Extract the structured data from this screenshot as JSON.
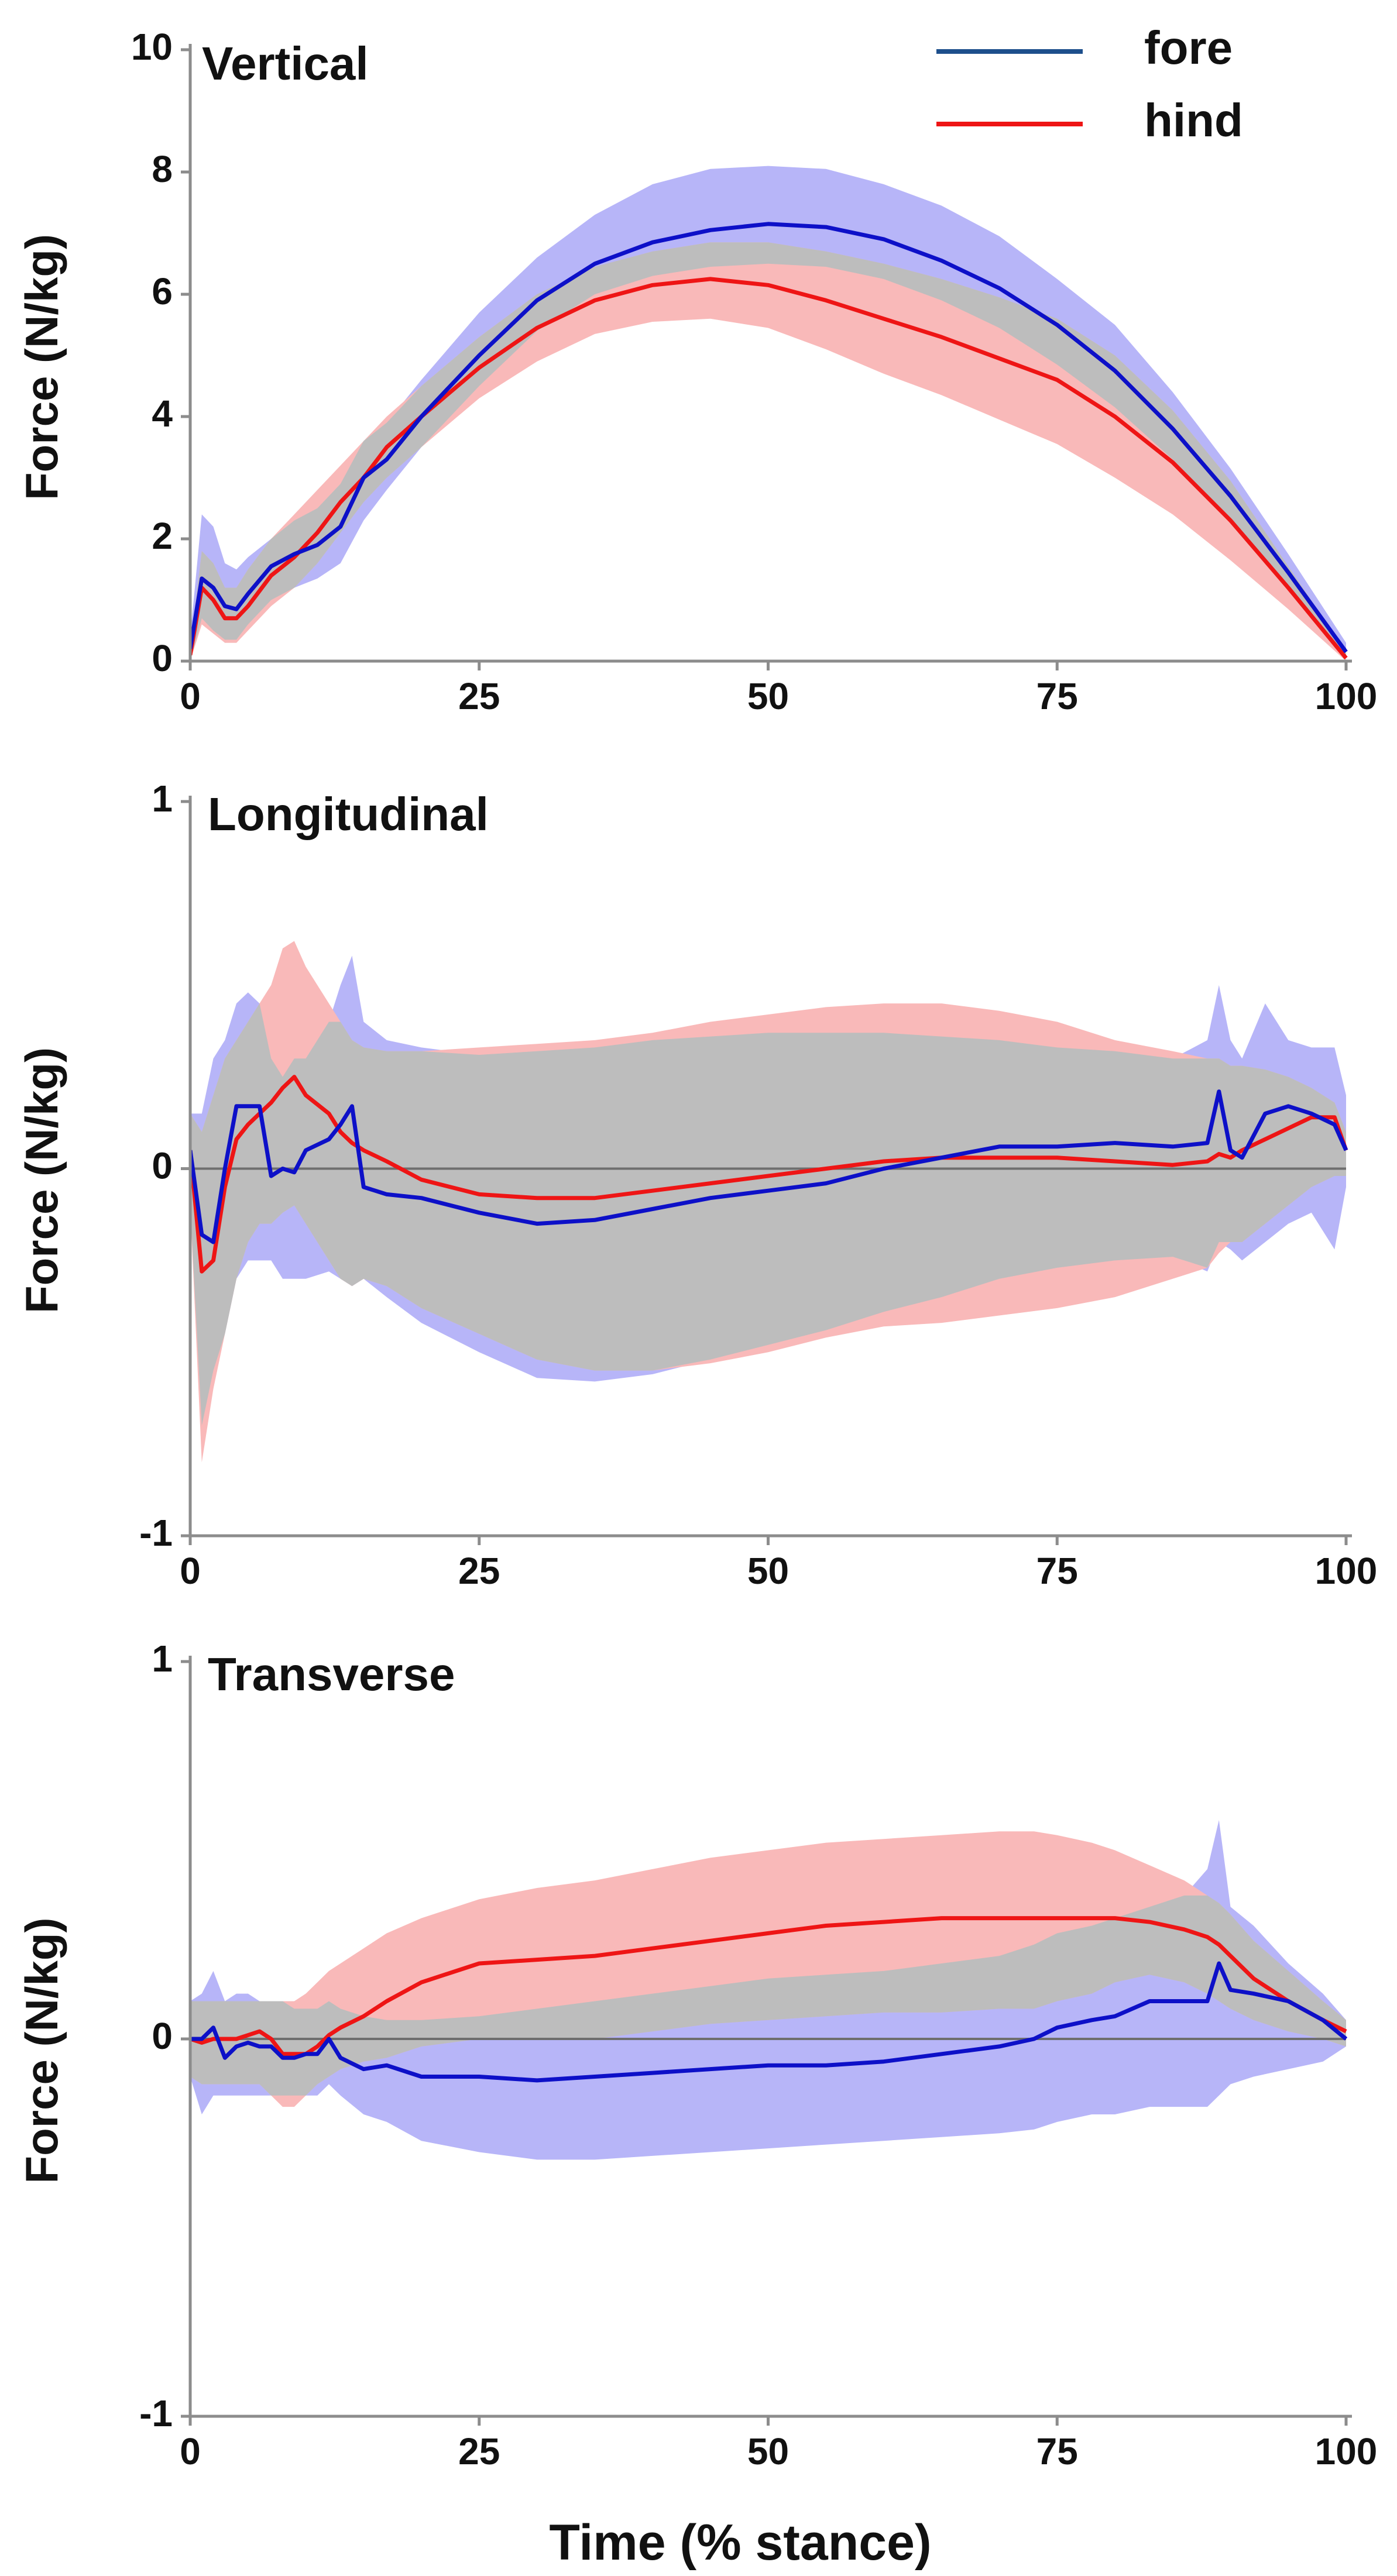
{
  "colors": {
    "fore_line": "#0d10c8",
    "fore_band": "#b7b5f8",
    "hind_line": "#ee1515",
    "hind_band": "#f9b9b9",
    "overlap_band": "#bdbdbd",
    "legend_fore_line": "#1d4f8c",
    "axis": "#8c8c8c",
    "zero_line": "#6e6e6e"
  },
  "legend": {
    "fore": "fore",
    "hind": "hind"
  },
  "xlabel": "Time (% stance)",
  "chart_data": [
    {
      "type": "line",
      "title": "Vertical",
      "ylabel": "Force (N/kg)",
      "xlim": [
        0,
        100
      ],
      "ylim": [
        0,
        10
      ],
      "yticks": [
        "0",
        "2",
        "4",
        "6",
        "8",
        "10"
      ],
      "xticks": [
        "0",
        "25",
        "50",
        "75",
        "100"
      ],
      "x": [
        0,
        1,
        2,
        3,
        4,
        5,
        7,
        9,
        11,
        13,
        15,
        17,
        20,
        25,
        30,
        35,
        40,
        45,
        50,
        55,
        60,
        65,
        70,
        75,
        80,
        85,
        90,
        95,
        100
      ],
      "series": [
        {
          "name": "fore",
          "values": [
            0.2,
            1.35,
            1.2,
            0.9,
            0.85,
            1.1,
            1.55,
            1.75,
            1.9,
            2.2,
            3.0,
            3.3,
            4.0,
            5.0,
            5.9,
            6.5,
            6.85,
            7.05,
            7.15,
            7.1,
            6.9,
            6.55,
            6.1,
            5.5,
            4.75,
            3.8,
            2.7,
            1.45,
            0.15
          ],
          "lower": [
            0.0,
            0.7,
            0.5,
            0.35,
            0.35,
            0.6,
            1.0,
            1.2,
            1.35,
            1.6,
            2.3,
            2.8,
            3.5,
            4.5,
            5.4,
            6.0,
            6.3,
            6.45,
            6.5,
            6.45,
            6.25,
            5.9,
            5.45,
            4.85,
            4.15,
            3.3,
            2.3,
            1.15,
            0.05
          ],
          "upper": [
            0.4,
            2.4,
            2.2,
            1.6,
            1.5,
            1.7,
            2.0,
            2.3,
            2.5,
            2.9,
            3.6,
            3.9,
            4.6,
            5.7,
            6.6,
            7.3,
            7.8,
            8.05,
            8.1,
            8.05,
            7.8,
            7.45,
            6.95,
            6.25,
            5.5,
            4.4,
            3.15,
            1.75,
            0.3
          ]
        },
        {
          "name": "hind",
          "values": [
            0.1,
            1.2,
            1.0,
            0.7,
            0.7,
            0.9,
            1.4,
            1.7,
            2.1,
            2.6,
            3.0,
            3.5,
            4.0,
            4.8,
            5.45,
            5.9,
            6.15,
            6.25,
            6.15,
            5.9,
            5.6,
            5.3,
            4.95,
            4.6,
            4.0,
            3.25,
            2.3,
            1.2,
            0.05
          ],
          "lower": [
            0.0,
            0.6,
            0.45,
            0.3,
            0.3,
            0.5,
            0.9,
            1.2,
            1.6,
            2.1,
            2.6,
            3.0,
            3.5,
            4.3,
            4.9,
            5.35,
            5.55,
            5.6,
            5.45,
            5.1,
            4.7,
            4.35,
            3.95,
            3.55,
            3.0,
            2.4,
            1.65,
            0.85,
            0.0
          ],
          "upper": [
            0.2,
            1.8,
            1.6,
            1.2,
            1.2,
            1.5,
            2.0,
            2.4,
            2.8,
            3.2,
            3.6,
            4.0,
            4.5,
            5.3,
            6.0,
            6.45,
            6.7,
            6.85,
            6.85,
            6.7,
            6.5,
            6.25,
            5.95,
            5.6,
            5.0,
            4.1,
            2.95,
            1.55,
            0.15
          ]
        }
      ]
    },
    {
      "type": "line",
      "title": "Longitudinal",
      "ylabel": "Force (N/kg)",
      "xlim": [
        0,
        100
      ],
      "ylim": [
        -1,
        1
      ],
      "yticks": [
        "-1",
        "0",
        "1"
      ],
      "xticks": [
        "0",
        "25",
        "50",
        "75",
        "100"
      ],
      "x": [
        0,
        1,
        2,
        3,
        4,
        5,
        6,
        7,
        8,
        9,
        10,
        12,
        13,
        14,
        15,
        17,
        20,
        25,
        30,
        35,
        40,
        45,
        50,
        55,
        60,
        65,
        70,
        75,
        80,
        85,
        88,
        89,
        90,
        91,
        93,
        95,
        97,
        99,
        100
      ],
      "series": [
        {
          "name": "fore",
          "values": [
            0.05,
            -0.18,
            -0.2,
            0.0,
            0.17,
            0.17,
            0.17,
            -0.02,
            0.0,
            -0.01,
            0.05,
            0.08,
            0.12,
            0.17,
            -0.05,
            -0.07,
            -0.08,
            -0.12,
            -0.15,
            -0.14,
            -0.11,
            -0.08,
            -0.06,
            -0.04,
            0.0,
            0.03,
            0.06,
            0.06,
            0.07,
            0.06,
            0.07,
            0.21,
            0.05,
            0.03,
            0.15,
            0.17,
            0.15,
            0.12,
            0.05
          ],
          "lower": [
            -0.1,
            -0.7,
            -0.55,
            -0.45,
            -0.3,
            -0.25,
            -0.25,
            -0.25,
            -0.3,
            -0.3,
            -0.3,
            -0.28,
            -0.3,
            -0.32,
            -0.3,
            -0.35,
            -0.42,
            -0.5,
            -0.57,
            -0.58,
            -0.56,
            -0.52,
            -0.48,
            -0.44,
            -0.39,
            -0.35,
            -0.3,
            -0.27,
            -0.25,
            -0.24,
            -0.28,
            -0.2,
            -0.22,
            -0.25,
            -0.2,
            -0.15,
            -0.12,
            -0.22,
            -0.05
          ],
          "upper": [
            0.15,
            0.15,
            0.3,
            0.35,
            0.45,
            0.48,
            0.45,
            0.3,
            0.25,
            0.3,
            0.3,
            0.4,
            0.5,
            0.58,
            0.4,
            0.35,
            0.33,
            0.31,
            0.32,
            0.33,
            0.35,
            0.36,
            0.37,
            0.37,
            0.37,
            0.36,
            0.35,
            0.33,
            0.32,
            0.3,
            0.35,
            0.5,
            0.35,
            0.3,
            0.45,
            0.35,
            0.33,
            0.33,
            0.2
          ]
        },
        {
          "name": "hind",
          "values": [
            0.05,
            -0.28,
            -0.25,
            -0.05,
            0.08,
            0.12,
            0.15,
            0.18,
            0.22,
            0.25,
            0.2,
            0.15,
            0.1,
            0.07,
            0.05,
            0.02,
            -0.03,
            -0.07,
            -0.08,
            -0.08,
            -0.06,
            -0.04,
            -0.02,
            0.0,
            0.02,
            0.03,
            0.03,
            0.03,
            0.02,
            0.01,
            0.02,
            0.04,
            0.03,
            0.05,
            0.08,
            0.11,
            0.14,
            0.14,
            0.05
          ],
          "lower": [
            -0.1,
            -0.8,
            -0.6,
            -0.45,
            -0.3,
            -0.2,
            -0.15,
            -0.15,
            -0.12,
            -0.1,
            -0.15,
            -0.25,
            -0.3,
            -0.32,
            -0.3,
            -0.32,
            -0.38,
            -0.45,
            -0.52,
            -0.55,
            -0.55,
            -0.53,
            -0.5,
            -0.46,
            -0.43,
            -0.42,
            -0.4,
            -0.38,
            -0.35,
            -0.3,
            -0.27,
            -0.23,
            -0.2,
            -0.2,
            -0.15,
            -0.1,
            -0.05,
            -0.02,
            -0.02
          ],
          "upper": [
            0.15,
            0.1,
            0.2,
            0.3,
            0.35,
            0.4,
            0.45,
            0.5,
            0.6,
            0.62,
            0.55,
            0.45,
            0.4,
            0.35,
            0.33,
            0.32,
            0.32,
            0.33,
            0.34,
            0.35,
            0.37,
            0.4,
            0.42,
            0.44,
            0.45,
            0.45,
            0.43,
            0.4,
            0.35,
            0.32,
            0.3,
            0.3,
            0.28,
            0.28,
            0.27,
            0.25,
            0.22,
            0.18,
            0.1
          ]
        }
      ]
    },
    {
      "type": "line",
      "title": "Transverse",
      "ylabel": "Force (N/kg)",
      "xlim": [
        0,
        100
      ],
      "ylim": [
        -1,
        1
      ],
      "yticks": [
        "-1",
        "0",
        "1"
      ],
      "xticks": [
        "0",
        "25",
        "50",
        "75",
        "100"
      ],
      "x": [
        0,
        1,
        2,
        3,
        4,
        5,
        6,
        7,
        8,
        9,
        10,
        11,
        12,
        13,
        15,
        17,
        20,
        25,
        30,
        35,
        40,
        45,
        50,
        55,
        60,
        65,
        70,
        73,
        75,
        78,
        80,
        83,
        86,
        88,
        89,
        90,
        92,
        95,
        98,
        100
      ],
      "series": [
        {
          "name": "fore",
          "values": [
            0.0,
            0.0,
            0.03,
            -0.05,
            -0.02,
            -0.01,
            -0.02,
            -0.02,
            -0.05,
            -0.05,
            -0.04,
            -0.04,
            0.0,
            -0.05,
            -0.08,
            -0.07,
            -0.1,
            -0.1,
            -0.11,
            -0.1,
            -0.09,
            -0.08,
            -0.07,
            -0.07,
            -0.06,
            -0.04,
            -0.02,
            0.0,
            0.03,
            0.05,
            0.06,
            0.1,
            0.1,
            0.1,
            0.2,
            0.13,
            0.12,
            0.1,
            0.05,
            0.0
          ],
          "lower": [
            -0.1,
            -0.2,
            -0.15,
            -0.15,
            -0.15,
            -0.15,
            -0.15,
            -0.15,
            -0.15,
            -0.15,
            -0.15,
            -0.15,
            -0.12,
            -0.15,
            -0.2,
            -0.22,
            -0.27,
            -0.3,
            -0.32,
            -0.32,
            -0.31,
            -0.3,
            -0.29,
            -0.28,
            -0.27,
            -0.26,
            -0.25,
            -0.24,
            -0.22,
            -0.2,
            -0.2,
            -0.18,
            -0.18,
            -0.18,
            -0.15,
            -0.12,
            -0.1,
            -0.08,
            -0.06,
            -0.02
          ],
          "upper": [
            0.1,
            0.12,
            0.18,
            0.1,
            0.12,
            0.12,
            0.1,
            0.1,
            0.1,
            0.08,
            0.08,
            0.08,
            0.1,
            0.08,
            0.06,
            0.05,
            0.05,
            0.06,
            0.08,
            0.1,
            0.12,
            0.14,
            0.16,
            0.17,
            0.18,
            0.2,
            0.22,
            0.25,
            0.28,
            0.3,
            0.32,
            0.35,
            0.38,
            0.45,
            0.58,
            0.35,
            0.3,
            0.2,
            0.12,
            0.05
          ]
        },
        {
          "name": "hind",
          "values": [
            0.0,
            -0.01,
            0.0,
            0.0,
            0.0,
            0.01,
            0.02,
            0.0,
            -0.04,
            -0.04,
            -0.04,
            -0.02,
            0.01,
            0.03,
            0.06,
            0.1,
            0.15,
            0.2,
            0.21,
            0.22,
            0.24,
            0.26,
            0.28,
            0.3,
            0.31,
            0.32,
            0.32,
            0.32,
            0.32,
            0.32,
            0.32,
            0.31,
            0.29,
            0.27,
            0.25,
            0.22,
            0.16,
            0.1,
            0.05,
            0.02
          ],
          "lower": [
            -0.1,
            -0.12,
            -0.12,
            -0.12,
            -0.12,
            -0.12,
            -0.12,
            -0.15,
            -0.18,
            -0.18,
            -0.15,
            -0.12,
            -0.1,
            -0.08,
            -0.06,
            -0.05,
            -0.02,
            0.0,
            0.0,
            0.0,
            0.02,
            0.04,
            0.05,
            0.06,
            0.07,
            0.07,
            0.08,
            0.08,
            0.1,
            0.12,
            0.15,
            0.17,
            0.15,
            0.12,
            0.1,
            0.08,
            0.05,
            0.02,
            0.0,
            -0.02
          ],
          "upper": [
            0.1,
            0.1,
            0.1,
            0.1,
            0.1,
            0.1,
            0.1,
            0.1,
            0.1,
            0.1,
            0.12,
            0.15,
            0.18,
            0.2,
            0.24,
            0.28,
            0.32,
            0.37,
            0.4,
            0.42,
            0.45,
            0.48,
            0.5,
            0.52,
            0.53,
            0.54,
            0.55,
            0.55,
            0.54,
            0.52,
            0.5,
            0.46,
            0.42,
            0.38,
            0.36,
            0.33,
            0.26,
            0.18,
            0.1,
            0.05
          ]
        }
      ]
    }
  ]
}
